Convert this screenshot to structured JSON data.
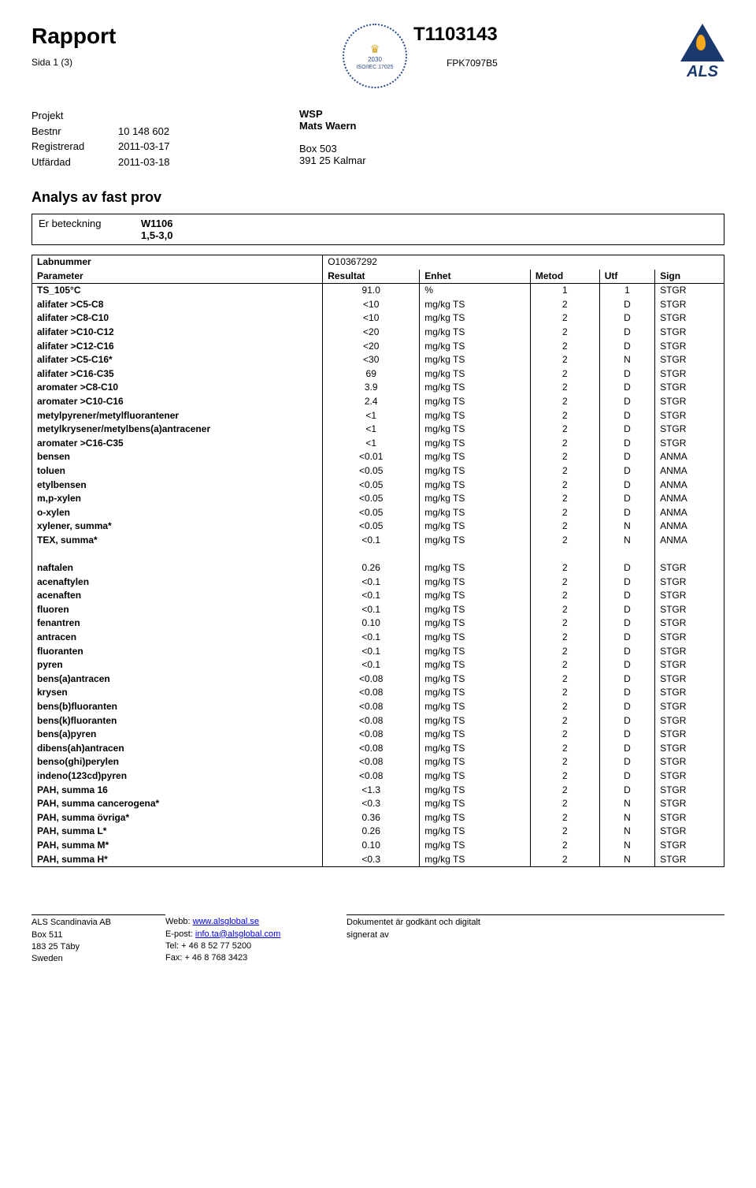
{
  "header": {
    "title": "Rapport",
    "page_info": "Sida 1 (3)",
    "report_number": "T1103143",
    "sample_id": "FPK7097B5",
    "accred": {
      "year": "2030",
      "iso": "ISO/IEC 17025"
    },
    "als_text": "ALS"
  },
  "meta": {
    "projekt_label": "Projekt",
    "bestnr_label": "Bestnr",
    "bestnr_value": "10 148 602",
    "reg_label": "Registrerad",
    "reg_value": "2011-03-17",
    "utf_label": "Utfärdad",
    "utf_value": "2011-03-18",
    "right_line1": "WSP",
    "right_line2": "Mats Waern",
    "right_line3": "Box 503",
    "right_line4": "391 25 Kalmar"
  },
  "section_title": "Analys av fast prov",
  "designation": {
    "label": "Er beteckning",
    "v1": "W1106",
    "v2": "1,5-3,0"
  },
  "labnummer": {
    "label": "Labnummer",
    "value": "O10367292"
  },
  "table": {
    "headers": [
      "Parameter",
      "Resultat",
      "Enhet",
      "Metod",
      "Utf",
      "Sign"
    ],
    "rows": [
      [
        "TS_105°C",
        "91.0",
        "%",
        "1",
        "1",
        "STGR"
      ],
      [
        "alifater >C5-C8",
        "<10",
        "mg/kg TS",
        "2",
        "D",
        "STGR"
      ],
      [
        "alifater >C8-C10",
        "<10",
        "mg/kg TS",
        "2",
        "D",
        "STGR"
      ],
      [
        "alifater >C10-C12",
        "<20",
        "mg/kg TS",
        "2",
        "D",
        "STGR"
      ],
      [
        "alifater >C12-C16",
        "<20",
        "mg/kg TS",
        "2",
        "D",
        "STGR"
      ],
      [
        "alifater >C5-C16*",
        "<30",
        "mg/kg TS",
        "2",
        "N",
        "STGR"
      ],
      [
        "alifater >C16-C35",
        "69",
        "mg/kg TS",
        "2",
        "D",
        "STGR"
      ],
      [
        "aromater >C8-C10",
        "3.9",
        "mg/kg TS",
        "2",
        "D",
        "STGR"
      ],
      [
        "aromater >C10-C16",
        "2.4",
        "mg/kg TS",
        "2",
        "D",
        "STGR"
      ],
      [
        "metylpyrener/metylfluorantener",
        "<1",
        "mg/kg TS",
        "2",
        "D",
        "STGR"
      ],
      [
        "metylkrysener/metylbens(a)antracener",
        "<1",
        "mg/kg TS",
        "2",
        "D",
        "STGR"
      ],
      [
        "aromater >C16-C35",
        "<1",
        "mg/kg TS",
        "2",
        "D",
        "STGR"
      ],
      [
        "bensen",
        "<0.01",
        "mg/kg TS",
        "2",
        "D",
        "ANMA"
      ],
      [
        "toluen",
        "<0.05",
        "mg/kg TS",
        "2",
        "D",
        "ANMA"
      ],
      [
        "etylbensen",
        "<0.05",
        "mg/kg TS",
        "2",
        "D",
        "ANMA"
      ],
      [
        "m,p-xylen",
        "<0.05",
        "mg/kg TS",
        "2",
        "D",
        "ANMA"
      ],
      [
        "o-xylen",
        "<0.05",
        "mg/kg TS",
        "2",
        "D",
        "ANMA"
      ],
      [
        "xylener, summa*",
        "<0.05",
        "mg/kg TS",
        "2",
        "N",
        "ANMA"
      ],
      [
        "TEX, summa*",
        "<0.1",
        "mg/kg TS",
        "2",
        "N",
        "ANMA"
      ]
    ],
    "rows2": [
      [
        "naftalen",
        "0.26",
        "mg/kg TS",
        "2",
        "D",
        "STGR"
      ],
      [
        "acenaftylen",
        "<0.1",
        "mg/kg TS",
        "2",
        "D",
        "STGR"
      ],
      [
        "acenaften",
        "<0.1",
        "mg/kg TS",
        "2",
        "D",
        "STGR"
      ],
      [
        "fluoren",
        "<0.1",
        "mg/kg TS",
        "2",
        "D",
        "STGR"
      ],
      [
        "fenantren",
        "0.10",
        "mg/kg TS",
        "2",
        "D",
        "STGR"
      ],
      [
        "antracen",
        "<0.1",
        "mg/kg TS",
        "2",
        "D",
        "STGR"
      ],
      [
        "fluoranten",
        "<0.1",
        "mg/kg TS",
        "2",
        "D",
        "STGR"
      ],
      [
        "pyren",
        "<0.1",
        "mg/kg TS",
        "2",
        "D",
        "STGR"
      ],
      [
        "bens(a)antracen",
        "<0.08",
        "mg/kg TS",
        "2",
        "D",
        "STGR"
      ],
      [
        "krysen",
        "<0.08",
        "mg/kg TS",
        "2",
        "D",
        "STGR"
      ],
      [
        "bens(b)fluoranten",
        "<0.08",
        "mg/kg TS",
        "2",
        "D",
        "STGR"
      ],
      [
        "bens(k)fluoranten",
        "<0.08",
        "mg/kg TS",
        "2",
        "D",
        "STGR"
      ],
      [
        "bens(a)pyren",
        "<0.08",
        "mg/kg TS",
        "2",
        "D",
        "STGR"
      ],
      [
        "dibens(ah)antracen",
        "<0.08",
        "mg/kg TS",
        "2",
        "D",
        "STGR"
      ],
      [
        "benso(ghi)perylen",
        "<0.08",
        "mg/kg TS",
        "2",
        "D",
        "STGR"
      ],
      [
        "indeno(123cd)pyren",
        "<0.08",
        "mg/kg TS",
        "2",
        "D",
        "STGR"
      ],
      [
        "PAH, summa 16",
        "<1.3",
        "mg/kg TS",
        "2",
        "D",
        "STGR"
      ],
      [
        "PAH, summa cancerogena*",
        "<0.3",
        "mg/kg TS",
        "2",
        "N",
        "STGR"
      ],
      [
        "PAH, summa övriga*",
        "0.36",
        "mg/kg TS",
        "2",
        "N",
        "STGR"
      ],
      [
        "PAH, summa L*",
        "0.26",
        "mg/kg TS",
        "2",
        "N",
        "STGR"
      ],
      [
        "PAH, summa M*",
        "0.10",
        "mg/kg TS",
        "2",
        "N",
        "STGR"
      ],
      [
        "PAH, summa H*",
        "<0.3",
        "mg/kg TS",
        "2",
        "N",
        "STGR"
      ]
    ]
  },
  "footer": {
    "col1": [
      "ALS Scandinavia AB",
      "Box 511",
      "183 25 Täby",
      "Sweden"
    ],
    "col2_labels": [
      "Webb: ",
      "E-post: ",
      "Tel: + 46 8 52 77 5200",
      "Fax: + 46 8 768 3423"
    ],
    "col2_links": [
      "www.alsglobal.se",
      "info.ta@alsglobal.com"
    ],
    "col3": [
      "Dokumentet är godkänt och digitalt",
      "signerat av"
    ]
  }
}
